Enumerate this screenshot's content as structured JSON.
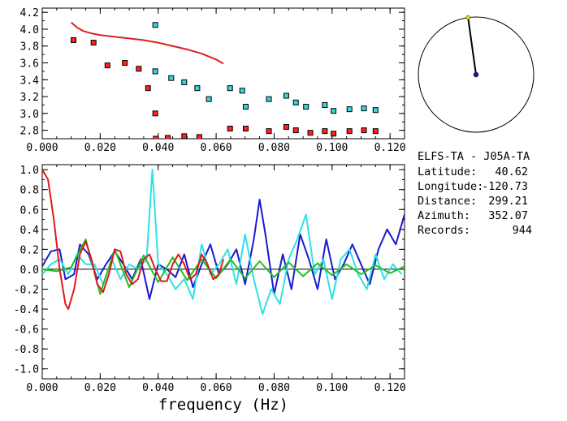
{
  "station": {
    "title": "ELFS-TA  -  J05A-TA",
    "rows": [
      {
        "label": "Latitude:",
        "value": "40.62"
      },
      {
        "label": "Longitude:",
        "value": "-120.73"
      },
      {
        "label": "Distance:",
        "value": "299.21"
      },
      {
        "label": "Azimuth:",
        "value": "352.07"
      },
      {
        "label": "Records:",
        "value": "944"
      }
    ]
  },
  "compass": {
    "azimuth_deg": 352.07,
    "needle_color": "#000000",
    "center_color": "#1a1aa0",
    "tip_color": "#e8e000"
  },
  "chart_data": [
    {
      "type": "scatter",
      "panel": "top",
      "xlim": [
        0.0,
        0.125
      ],
      "ylim": [
        2.7,
        4.25
      ],
      "x_ticks": [
        "0.000",
        "0.020",
        "0.040",
        "0.060",
        "0.080",
        "0.100",
        "0.120"
      ],
      "y_ticks": [
        "2.8",
        "3.0",
        "3.2",
        "3.4",
        "3.6",
        "3.8",
        "4.0",
        "4.2"
      ],
      "series": [
        {
          "color": "#ff2020",
          "marker": "square",
          "x": [
            0.0108,
            0.0177,
            0.0225,
            0.0285,
            0.0333,
            0.0365,
            0.039,
            0.0392,
            0.0433,
            0.049,
            0.0542,
            0.0648,
            0.0702,
            0.0782,
            0.0842,
            0.0875,
            0.0925,
            0.0975,
            0.1005,
            0.106,
            0.111,
            0.115
          ],
          "y": [
            3.87,
            3.84,
            3.57,
            3.6,
            3.53,
            3.3,
            3.0,
            2.7,
            2.71,
            2.73,
            2.72,
            2.82,
            2.82,
            2.79,
            2.84,
            2.8,
            2.77,
            2.79,
            2.76,
            2.79,
            2.8,
            2.79
          ]
        },
        {
          "color": "#30d8d8",
          "marker": "square",
          "x": [
            0.039,
            0.039,
            0.0445,
            0.049,
            0.0535,
            0.0575,
            0.0648,
            0.069,
            0.0702,
            0.0782,
            0.0842,
            0.0875,
            0.091,
            0.0975,
            0.1005,
            0.106,
            0.111,
            0.115
          ],
          "y": [
            4.05,
            3.5,
            3.42,
            3.37,
            3.3,
            3.17,
            3.3,
            3.27,
            3.08,
            3.17,
            3.21,
            3.13,
            3.08,
            3.1,
            3.03,
            3.05,
            3.06,
            3.04
          ]
        },
        {
          "color": "#dd2020",
          "marker": "line",
          "x": [
            0.01,
            0.012,
            0.014,
            0.017,
            0.02,
            0.025,
            0.03,
            0.035,
            0.04,
            0.045,
            0.05,
            0.055,
            0.06,
            0.0625
          ],
          "y": [
            4.08,
            4.02,
            3.98,
            3.95,
            3.93,
            3.91,
            3.89,
            3.87,
            3.84,
            3.8,
            3.76,
            3.71,
            3.64,
            3.59
          ]
        }
      ]
    },
    {
      "type": "line",
      "panel": "bottom",
      "xlabel": "frequency (Hz)",
      "xlim": [
        0.0,
        0.125
      ],
      "ylim": [
        -1.1,
        1.05
      ],
      "x_ticks": [
        "0.000",
        "0.020",
        "0.040",
        "0.060",
        "0.080",
        "0.100",
        "0.120"
      ],
      "y_ticks": [
        "1.0",
        "0.8",
        "0.6",
        "0.4",
        "0.2",
        "0.0",
        "-0.2",
        "-0.4",
        "-0.6",
        "-0.8",
        "-1.0"
      ],
      "series": [
        {
          "color": "#1a1acc",
          "x": [
            0.0,
            0.003,
            0.006,
            0.008,
            0.011,
            0.013,
            0.016,
            0.019,
            0.022,
            0.025,
            0.028,
            0.031,
            0.034,
            0.037,
            0.04,
            0.043,
            0.046,
            0.049,
            0.052,
            0.055,
            0.058,
            0.061,
            0.064,
            0.067,
            0.07,
            0.073,
            0.075,
            0.077,
            0.08,
            0.083,
            0.086,
            0.089,
            0.092,
            0.095,
            0.098,
            0.101,
            0.104,
            0.107,
            0.11,
            0.113,
            0.116,
            0.119,
            0.122,
            0.125
          ],
          "y": [
            0.03,
            0.18,
            0.2,
            -0.1,
            -0.05,
            0.25,
            0.15,
            -0.1,
            0.05,
            0.18,
            0.05,
            -0.1,
            0.1,
            -0.3,
            0.05,
            0.0,
            -0.08,
            0.15,
            -0.18,
            0.05,
            0.25,
            -0.05,
            0.05,
            0.2,
            -0.15,
            0.3,
            0.7,
            0.35,
            -0.25,
            0.15,
            -0.2,
            0.35,
            0.1,
            -0.2,
            0.3,
            -0.1,
            0.05,
            0.25,
            0.05,
            -0.15,
            0.2,
            0.4,
            0.25,
            0.55
          ]
        },
        {
          "color": "#30e0e8",
          "x": [
            0.0,
            0.003,
            0.006,
            0.009,
            0.012,
            0.015,
            0.018,
            0.021,
            0.024,
            0.027,
            0.03,
            0.033,
            0.036,
            0.038,
            0.04,
            0.043,
            0.046,
            0.049,
            0.052,
            0.055,
            0.058,
            0.061,
            0.064,
            0.067,
            0.07,
            0.073,
            0.076,
            0.079,
            0.082,
            0.085,
            0.088,
            0.091,
            0.094,
            0.097,
            0.1,
            0.103,
            0.106,
            0.109,
            0.112,
            0.115,
            0.118,
            0.121,
            0.124
          ],
          "y": [
            -0.05,
            0.05,
            0.1,
            -0.05,
            0.15,
            0.05,
            0.05,
            -0.15,
            0.1,
            -0.1,
            0.05,
            0.0,
            0.1,
            1.0,
            0.05,
            -0.05,
            -0.2,
            -0.1,
            -0.3,
            0.25,
            -0.05,
            0.05,
            0.2,
            -0.15,
            0.35,
            -0.1,
            -0.45,
            -0.2,
            -0.35,
            0.1,
            0.3,
            0.55,
            -0.05,
            0.1,
            -0.3,
            0.1,
            0.2,
            -0.05,
            -0.2,
            0.15,
            -0.1,
            0.05,
            -0.05
          ]
        },
        {
          "color": "#20c020",
          "x": [
            0.0,
            0.005,
            0.01,
            0.015,
            0.02,
            0.025,
            0.03,
            0.035,
            0.04,
            0.045,
            0.05,
            0.055,
            0.06,
            0.065,
            0.07,
            0.075,
            0.08,
            0.085,
            0.09,
            0.095,
            0.1,
            0.105,
            0.11,
            0.115,
            0.12,
            0.125
          ],
          "y": [
            0.0,
            -0.02,
            0.02,
            0.3,
            -0.25,
            0.2,
            -0.18,
            0.14,
            -0.13,
            0.12,
            -0.11,
            0.1,
            -0.09,
            0.1,
            -0.09,
            0.08,
            -0.08,
            0.07,
            -0.07,
            0.06,
            -0.06,
            0.05,
            -0.05,
            0.04,
            -0.04,
            0.03
          ]
        },
        {
          "color": "#dd1a1a",
          "x": [
            0.0,
            0.002,
            0.004,
            0.006,
            0.008,
            0.009,
            0.011,
            0.013,
            0.015,
            0.017,
            0.019,
            0.021,
            0.023,
            0.025,
            0.027,
            0.029,
            0.031,
            0.033,
            0.035,
            0.037,
            0.039,
            0.041,
            0.043,
            0.045,
            0.047,
            0.049,
            0.051,
            0.053,
            0.055,
            0.057,
            0.059,
            0.061,
            0.0625
          ],
          "y": [
            1.0,
            0.9,
            0.5,
            0.0,
            -0.35,
            -0.4,
            -0.2,
            0.15,
            0.28,
            0.1,
            -0.15,
            -0.23,
            -0.05,
            0.2,
            0.18,
            -0.05,
            -0.15,
            -0.1,
            0.1,
            0.15,
            0.0,
            -0.12,
            -0.12,
            0.05,
            0.15,
            0.05,
            -0.1,
            -0.05,
            0.15,
            0.05,
            -0.1,
            -0.05,
            0.1
          ]
        }
      ]
    }
  ]
}
